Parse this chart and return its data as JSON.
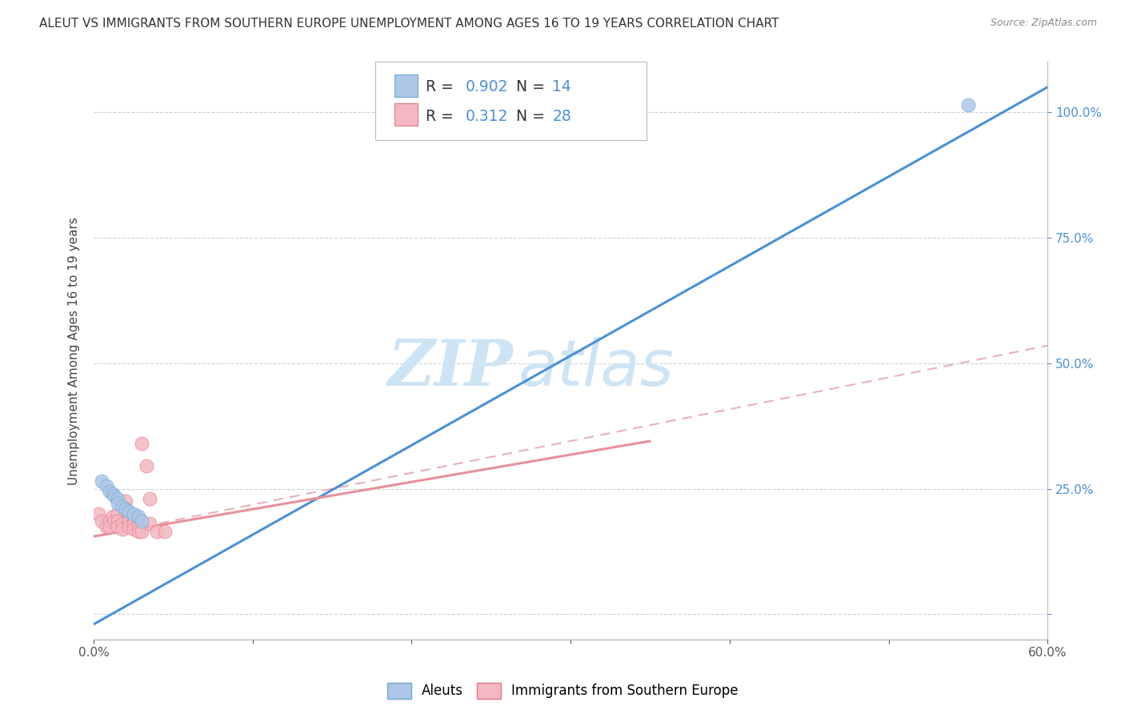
{
  "title": "ALEUT VS IMMIGRANTS FROM SOUTHERN EUROPE UNEMPLOYMENT AMONG AGES 16 TO 19 YEARS CORRELATION CHART",
  "source": "Source: ZipAtlas.com",
  "ylabel": "Unemployment Among Ages 16 to 19 years",
  "xlim": [
    0.0,
    0.6
  ],
  "ylim": [
    -0.05,
    1.1
  ],
  "xticks": [
    0.0,
    0.1,
    0.2,
    0.3,
    0.4,
    0.5,
    0.6
  ],
  "xticklabels": [
    "0.0%",
    "",
    "",
    "",
    "",
    "",
    "60.0%"
  ],
  "ytick_positions": [
    0.0,
    0.25,
    0.5,
    0.75,
    1.0
  ],
  "ytick_labels": [
    "",
    "25.0%",
    "50.0%",
    "75.0%",
    "100.0%"
  ],
  "R_aleut": 0.902,
  "N_aleut": 14,
  "R_immig": 0.312,
  "N_immig": 28,
  "aleut_color": "#aec6e8",
  "immig_color": "#f4b8c1",
  "line_aleut_color": "#4a90d9",
  "line_immig_color": "#e8909a",
  "line_immig_dash_color": "#e8b0b8",
  "watermark_zip": "ZIP",
  "watermark_atlas": "atlas",
  "watermark_color": "#cde4f5",
  "aleut_scatter": [
    [
      0.005,
      0.265
    ],
    [
      0.008,
      0.255
    ],
    [
      0.01,
      0.245
    ],
    [
      0.012,
      0.24
    ],
    [
      0.013,
      0.235
    ],
    [
      0.015,
      0.23
    ],
    [
      0.015,
      0.22
    ],
    [
      0.018,
      0.215
    ],
    [
      0.02,
      0.21
    ],
    [
      0.022,
      0.205
    ],
    [
      0.025,
      0.2
    ],
    [
      0.028,
      0.195
    ],
    [
      0.03,
      0.185
    ],
    [
      0.55,
      1.015
    ]
  ],
  "immig_scatter": [
    [
      0.003,
      0.2
    ],
    [
      0.005,
      0.185
    ],
    [
      0.008,
      0.175
    ],
    [
      0.01,
      0.185
    ],
    [
      0.01,
      0.175
    ],
    [
      0.012,
      0.195
    ],
    [
      0.013,
      0.185
    ],
    [
      0.015,
      0.2
    ],
    [
      0.015,
      0.185
    ],
    [
      0.015,
      0.175
    ],
    [
      0.018,
      0.18
    ],
    [
      0.018,
      0.17
    ],
    [
      0.02,
      0.225
    ],
    [
      0.02,
      0.21
    ],
    [
      0.022,
      0.185
    ],
    [
      0.022,
      0.175
    ],
    [
      0.025,
      0.195
    ],
    [
      0.025,
      0.18
    ],
    [
      0.025,
      0.17
    ],
    [
      0.028,
      0.175
    ],
    [
      0.028,
      0.165
    ],
    [
      0.03,
      0.165
    ],
    [
      0.03,
      0.34
    ],
    [
      0.033,
      0.295
    ],
    [
      0.035,
      0.23
    ],
    [
      0.035,
      0.18
    ],
    [
      0.04,
      0.165
    ],
    [
      0.045,
      0.165
    ]
  ],
  "aleut_line_x": [
    0.0,
    0.6
  ],
  "aleut_line_y": [
    -0.02,
    1.05
  ],
  "immig_solid_line_x": [
    0.0,
    0.35
  ],
  "immig_solid_line_y": [
    0.155,
    0.345
  ],
  "immig_dash_line_x": [
    0.0,
    0.6
  ],
  "immig_dash_line_y": [
    0.155,
    0.535
  ],
  "background_color": "#ffffff",
  "grid_color": "#d0d0d0",
  "title_fontsize": 11,
  "label_fontsize": 11,
  "tick_fontsize": 11
}
